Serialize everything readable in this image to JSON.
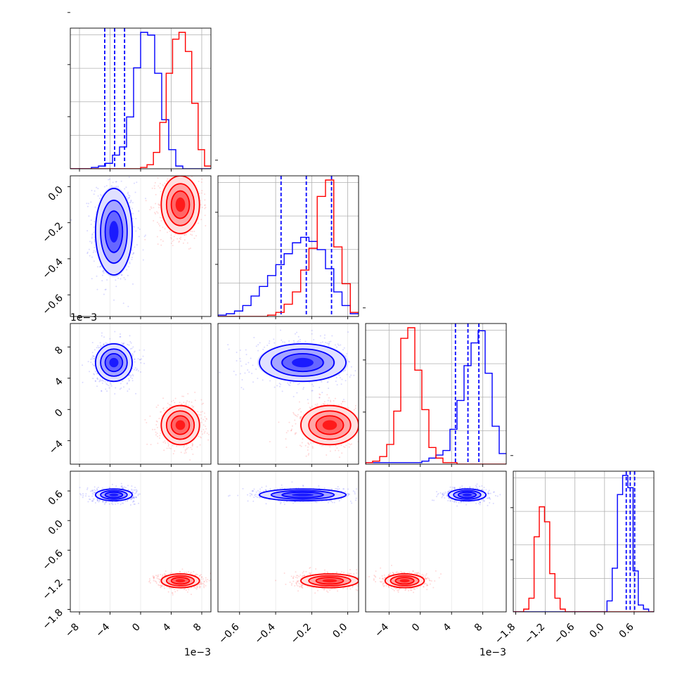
{
  "chart_data": {
    "type": "corner",
    "parameters": [
      {
        "ticks": [
          -8,
          -4,
          0,
          4,
          8
        ],
        "tick_labels": [
          "−8",
          "−4",
          "0",
          "4",
          "8"
        ],
        "range": [
          -9.2,
          9.2
        ],
        "offset_label": "1e−3"
      },
      {
        "ticks": [
          -0.6,
          -0.4,
          -0.2,
          0.0
        ],
        "tick_labels": [
          "−0.6",
          "−0.4",
          "−0.2",
          "0.0"
        ],
        "range": [
          -0.72,
          0.06
        ],
        "offset_label": ""
      },
      {
        "ticks": [
          -4,
          0,
          4,
          8
        ],
        "tick_labels": [
          "−4",
          "0",
          "4",
          "8"
        ],
        "range": [
          -7,
          11
        ],
        "offset_label": "1e−3"
      },
      {
        "ticks": [
          -1.8,
          -1.2,
          -0.6,
          0.0,
          0.6
        ],
        "tick_labels": [
          "−1.8",
          "−1.2",
          "−0.6",
          "0.0",
          "0.6"
        ],
        "range": [
          -1.85,
          1.0
        ],
        "offset_label": ""
      }
    ],
    "series": [
      {
        "color": "#0000ff",
        "means": [
          -3.5,
          -0.25,
          6.0,
          0.52
        ],
        "sigmas": [
          1.2,
          0.12,
          1.2,
          0.06
        ],
        "quantiles": [
          [
            -4.7,
            -3.4,
            -2.1
          ],
          [
            -0.37,
            -0.23,
            -0.09
          ],
          [
            4.5,
            6.1,
            7.5
          ],
          [
            0.44,
            0.52,
            0.61
          ]
        ],
        "hist_counts": [
          [
            0,
            0,
            0,
            1,
            2,
            4,
            10,
            16,
            38,
            74,
            100,
            98,
            70,
            36,
            14,
            2,
            0,
            0,
            0,
            0
          ],
          [
            1,
            2,
            4,
            8,
            15,
            22,
            30,
            38,
            46,
            54,
            58,
            55,
            49,
            35,
            18,
            8,
            2
          ],
          [
            1,
            1,
            1,
            1,
            1,
            1,
            1,
            1,
            2,
            4,
            6,
            9,
            23,
            42,
            65,
            80,
            88,
            60,
            25,
            7
          ],
          [
            0,
            0,
            0,
            0,
            0,
            0,
            0,
            0,
            0,
            0,
            0,
            0,
            0,
            0,
            0,
            0,
            0,
            0,
            8,
            32,
            86,
            100,
            91,
            30,
            5,
            2,
            0
          ]
        ]
      },
      {
        "color": "#ff0000",
        "means": [
          5.2,
          -0.1,
          -2.0,
          -1.22
        ],
        "sigmas": [
          1.25,
          0.08,
          1.25,
          0.07
        ],
        "quantiles": null,
        "hist_counts": [
          [
            0,
            0,
            0,
            0,
            0,
            0,
            0,
            0,
            0,
            0,
            0,
            1,
            3,
            12,
            34,
            70,
            95,
            100,
            86,
            48,
            14,
            2
          ],
          [
            0,
            0,
            0,
            0,
            0,
            0,
            1,
            3,
            9,
            18,
            34,
            50,
            88,
            100,
            51,
            24,
            3
          ],
          [
            1,
            2,
            5,
            13,
            35,
            83,
            90,
            62,
            36,
            11,
            4,
            1,
            1,
            0,
            0,
            0,
            0,
            0,
            0,
            0
          ],
          [
            0,
            0,
            2,
            10,
            55,
            77,
            66,
            28,
            10,
            2,
            0,
            0,
            0,
            0,
            0,
            0,
            0,
            0,
            0,
            0,
            0,
            0,
            0,
            0,
            0,
            0,
            0
          ]
        ]
      }
    ],
    "grid": true
  }
}
